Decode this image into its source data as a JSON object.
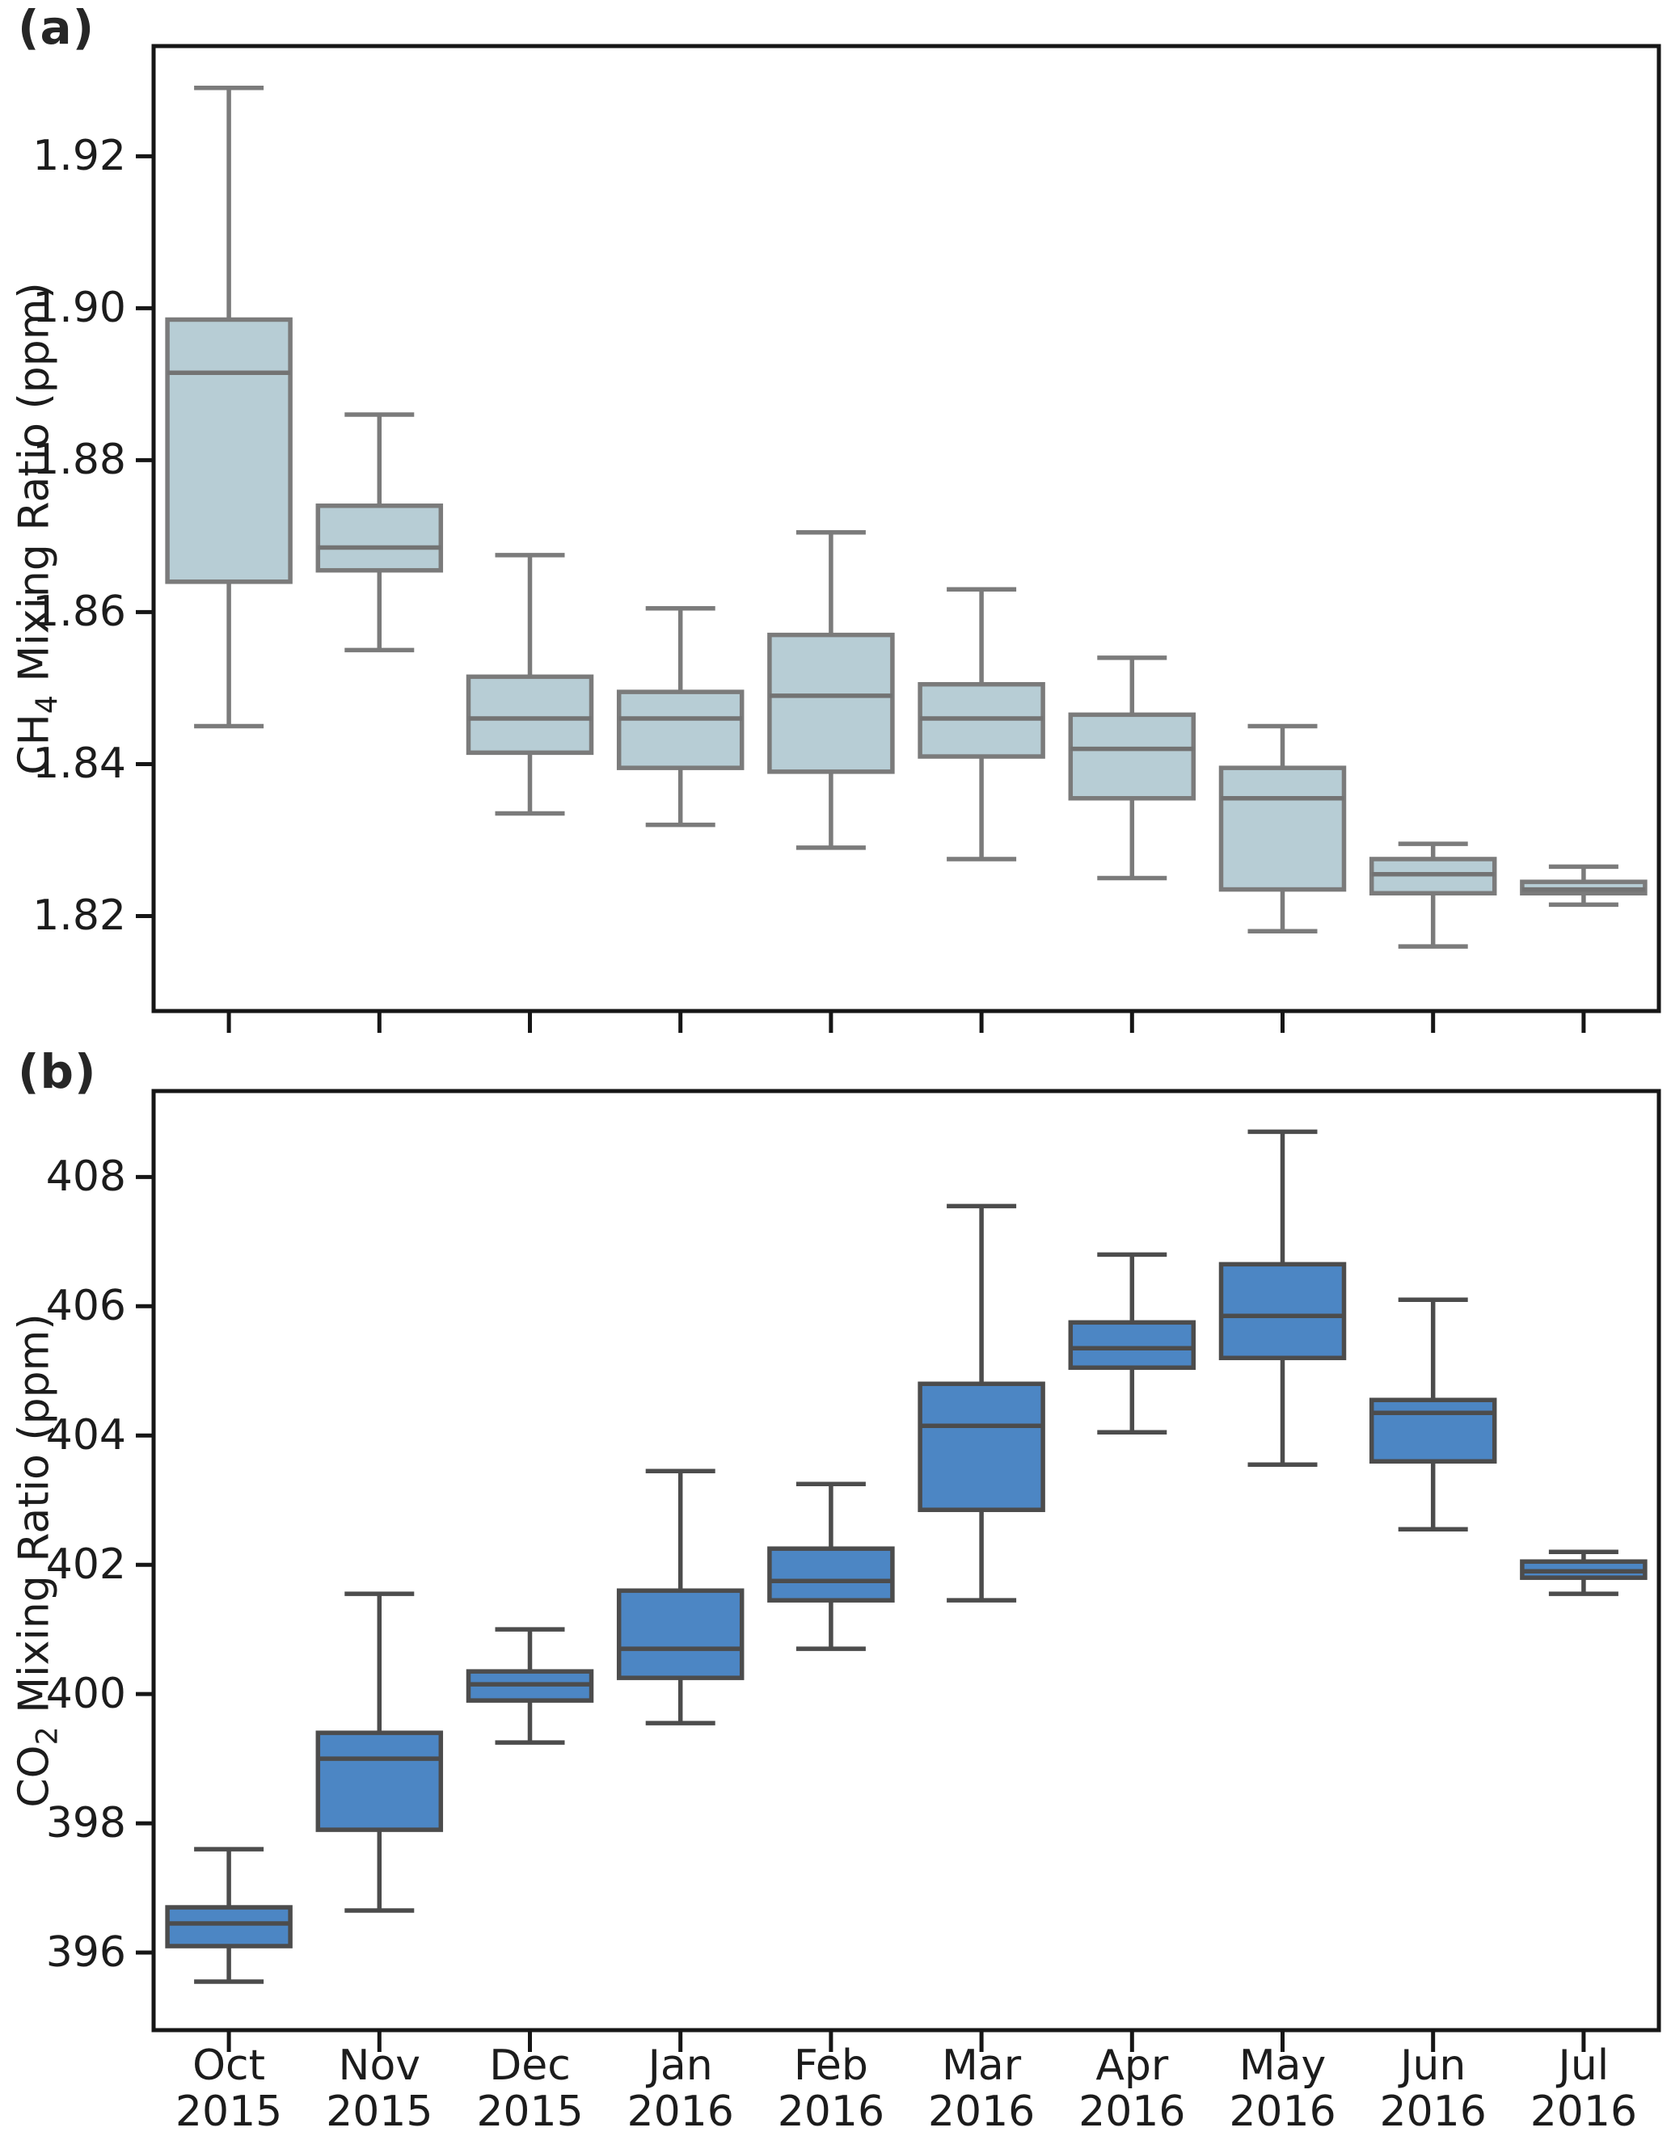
{
  "figure": {
    "background": "#ffffff",
    "panel_a_label": "(a)",
    "panel_b_label": "(b)"
  },
  "chart_data": [
    {
      "type": "boxplot",
      "panel": "(a)",
      "title": "",
      "ylabel_prefix": "CH",
      "ylabel_sub": "4",
      "ylabel_suffix": " Mixing Ratio (ppm)",
      "ylim": [
        1.8075,
        1.9345
      ],
      "yticks": [
        {
          "value": 1.92,
          "label": "1.92"
        },
        {
          "value": 1.9,
          "label": "1.90"
        },
        {
          "value": 1.88,
          "label": "1.88"
        },
        {
          "value": 1.86,
          "label": "1.86"
        },
        {
          "value": 1.84,
          "label": "1.84"
        },
        {
          "value": 1.82,
          "label": "1.82"
        }
      ],
      "grid": false,
      "legend": "none",
      "x_tick_labels_visible": false,
      "categories": [
        "Oct 2015",
        "Nov 2015",
        "Dec 2015",
        "Jan 2016",
        "Feb 2016",
        "Mar 2016",
        "Apr 2016",
        "May 2016",
        "Jun 2016",
        "Jul 2016"
      ],
      "boxes": [
        {
          "category": "Oct 2015",
          "whisker_low": 1.845,
          "q1": 1.864,
          "median": 1.8915,
          "q3": 1.8985,
          "whisker_high": 1.929
        },
        {
          "category": "Nov 2015",
          "whisker_low": 1.855,
          "q1": 1.8655,
          "median": 1.8685,
          "q3": 1.874,
          "whisker_high": 1.886
        },
        {
          "category": "Dec 2015",
          "whisker_low": 1.8335,
          "q1": 1.8415,
          "median": 1.846,
          "q3": 1.8515,
          "whisker_high": 1.8675
        },
        {
          "category": "Jan 2016",
          "whisker_low": 1.832,
          "q1": 1.8395,
          "median": 1.846,
          "q3": 1.8495,
          "whisker_high": 1.8605
        },
        {
          "category": "Feb 2016",
          "whisker_low": 1.829,
          "q1": 1.839,
          "median": 1.849,
          "q3": 1.857,
          "whisker_high": 1.8705
        },
        {
          "category": "Mar 2016",
          "whisker_low": 1.8275,
          "q1": 1.841,
          "median": 1.846,
          "q3": 1.8505,
          "whisker_high": 1.863
        },
        {
          "category": "Apr 2016",
          "whisker_low": 1.825,
          "q1": 1.8355,
          "median": 1.842,
          "q3": 1.8465,
          "whisker_high": 1.854
        },
        {
          "category": "May 2016",
          "whisker_low": 1.818,
          "q1": 1.8235,
          "median": 1.8355,
          "q3": 1.8395,
          "whisker_high": 1.845
        },
        {
          "category": "Jun 2016",
          "whisker_low": 1.816,
          "q1": 1.823,
          "median": 1.8255,
          "q3": 1.8275,
          "whisker_high": 1.8295
        },
        {
          "category": "Jul 2016",
          "whisker_low": 1.8215,
          "q1": 1.823,
          "median": 1.8235,
          "q3": 1.8245,
          "whisker_high": 1.8265
        }
      ],
      "style": {
        "box_fill": "#b7cdd5",
        "box_edge": "#7b7b7b",
        "whisker_color": "#7b7b7b",
        "median_color": "#737373"
      }
    },
    {
      "type": "boxplot",
      "panel": "(b)",
      "title": "",
      "ylabel_prefix": "CO",
      "ylabel_sub": "2",
      "ylabel_suffix": " Mixing Ratio (ppm)",
      "ylim": [
        394.8,
        409.33
      ],
      "yticks": [
        {
          "value": 408,
          "label": "408"
        },
        {
          "value": 406,
          "label": "406"
        },
        {
          "value": 404,
          "label": "404"
        },
        {
          "value": 402,
          "label": "402"
        },
        {
          "value": 400,
          "label": "400"
        },
        {
          "value": 398,
          "label": "398"
        },
        {
          "value": 396,
          "label": "396"
        }
      ],
      "grid": false,
      "legend": "none",
      "x_tick_labels_visible": true,
      "categories": [
        "Oct 2015",
        "Nov 2015",
        "Dec 2015",
        "Jan 2016",
        "Feb 2016",
        "Mar 2016",
        "Apr 2016",
        "May 2016",
        "Jun 2016",
        "Jul 2016"
      ],
      "x_tick_lines": [
        {
          "month": "Oct",
          "year": "2015"
        },
        {
          "month": "Nov",
          "year": "2015"
        },
        {
          "month": "Dec",
          "year": "2015"
        },
        {
          "month": "Jan",
          "year": "2016"
        },
        {
          "month": "Feb",
          "year": "2016"
        },
        {
          "month": "Mar",
          "year": "2016"
        },
        {
          "month": "Apr",
          "year": "2016"
        },
        {
          "month": "May",
          "year": "2016"
        },
        {
          "month": "Jun",
          "year": "2016"
        },
        {
          "month": "Jul",
          "year": "2016"
        }
      ],
      "boxes": [
        {
          "category": "Oct 2015",
          "whisker_low": 395.55,
          "q1": 396.1,
          "median": 396.45,
          "q3": 396.7,
          "whisker_high": 397.6
        },
        {
          "category": "Nov 2015",
          "whisker_low": 396.65,
          "q1": 397.9,
          "median": 399.0,
          "q3": 399.4,
          "whisker_high": 401.55
        },
        {
          "category": "Dec 2015",
          "whisker_low": 399.25,
          "q1": 399.9,
          "median": 400.15,
          "q3": 400.35,
          "whisker_high": 401.0
        },
        {
          "category": "Jan 2016",
          "whisker_low": 399.55,
          "q1": 400.25,
          "median": 400.7,
          "q3": 401.6,
          "whisker_high": 403.45
        },
        {
          "category": "Feb 2016",
          "whisker_low": 400.7,
          "q1": 401.45,
          "median": 401.75,
          "q3": 402.25,
          "whisker_high": 403.25
        },
        {
          "category": "Mar 2016",
          "whisker_low": 401.45,
          "q1": 402.85,
          "median": 404.15,
          "q3": 404.8,
          "whisker_high": 407.55
        },
        {
          "category": "Apr 2016",
          "whisker_low": 404.05,
          "q1": 405.05,
          "median": 405.35,
          "q3": 405.75,
          "whisker_high": 406.8
        },
        {
          "category": "May 2016",
          "whisker_low": 403.55,
          "q1": 405.2,
          "median": 405.85,
          "q3": 406.65,
          "whisker_high": 408.7
        },
        {
          "category": "Jun 2016",
          "whisker_low": 402.55,
          "q1": 403.6,
          "median": 404.35,
          "q3": 404.55,
          "whisker_high": 406.1
        },
        {
          "category": "Jul 2016",
          "whisker_low": 401.55,
          "q1": 401.8,
          "median": 401.9,
          "q3": 402.05,
          "whisker_high": 402.2
        }
      ],
      "style": {
        "box_fill": "#4c86c4",
        "box_edge": "#4c4c4c",
        "whisker_color": "#4c4c4c",
        "median_color": "#4c4c4c"
      }
    }
  ]
}
